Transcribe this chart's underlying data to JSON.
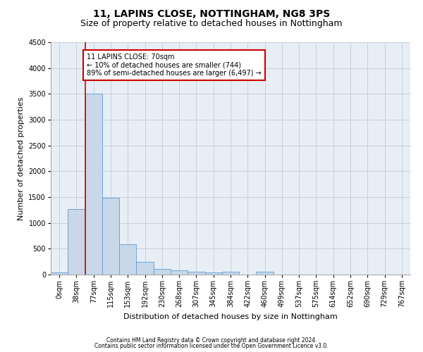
{
  "title1": "11, LAPINS CLOSE, NOTTINGHAM, NG8 3PS",
  "title2": "Size of property relative to detached houses in Nottingham",
  "xlabel": "Distribution of detached houses by size in Nottingham",
  "ylabel": "Number of detached properties",
  "bar_labels": [
    "0sqm",
    "38sqm",
    "77sqm",
    "115sqm",
    "153sqm",
    "192sqm",
    "230sqm",
    "268sqm",
    "307sqm",
    "345sqm",
    "384sqm",
    "422sqm",
    "460sqm",
    "499sqm",
    "537sqm",
    "575sqm",
    "614sqm",
    "652sqm",
    "690sqm",
    "729sqm",
    "767sqm"
  ],
  "bar_values": [
    40,
    1270,
    3500,
    1480,
    580,
    240,
    115,
    80,
    55,
    45,
    50,
    0,
    55,
    0,
    0,
    0,
    0,
    0,
    0,
    0,
    0
  ],
  "bar_color": "#c8d8e8",
  "bar_edge_color": "#5b9bd5",
  "grid_color": "#c8d0dc",
  "background_color": "#e8eef5",
  "vline_x": 1.5,
  "vline_color": "#cc0000",
  "annotation_text": "11 LAPINS CLOSE: 70sqm\n← 10% of detached houses are smaller (744)\n89% of semi-detached houses are larger (6,497) →",
  "annotation_box_color": "#cc0000",
  "ylim": [
    0,
    4500
  ],
  "yticks": [
    0,
    500,
    1000,
    1500,
    2000,
    2500,
    3000,
    3500,
    4000,
    4500
  ],
  "footer1": "Contains HM Land Registry data © Crown copyright and database right 2024.",
  "footer2": "Contains public sector information licensed under the Open Government Licence v3.0.",
  "title1_fontsize": 10,
  "title2_fontsize": 9,
  "xlabel_fontsize": 8,
  "ylabel_fontsize": 8,
  "tick_fontsize": 7,
  "annotation_fontsize": 7,
  "footer_fontsize": 5.5
}
